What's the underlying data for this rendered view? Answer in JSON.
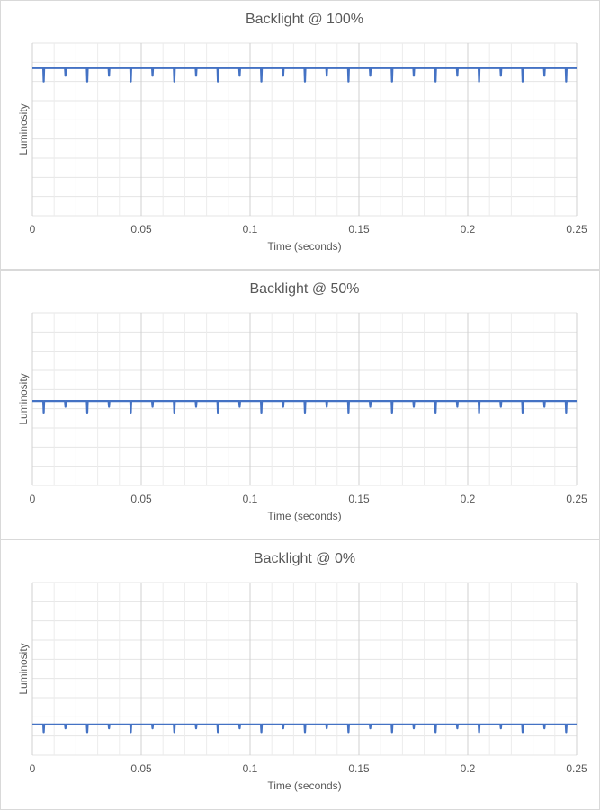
{
  "chart_data": [
    {
      "type": "line",
      "title": "Backlight @ 100%",
      "x_label": "Time (seconds)",
      "y_label": "Luminosity",
      "color": "#4472c4",
      "xlim": [
        0,
        0.25
      ],
      "xticks": [
        0,
        0.05,
        0.1,
        0.15,
        0.2,
        0.25
      ],
      "ylim": [
        0,
        9
      ],
      "ygrid": [
        0,
        1,
        2,
        3,
        4,
        5,
        6,
        7,
        8,
        9
      ],
      "grid": true,
      "x": [
        0,
        0.005,
        0.0052,
        0.0054,
        0.015,
        0.0152,
        0.0154,
        0.025,
        0.0252,
        0.0254,
        0.035,
        0.0352,
        0.0354,
        0.045,
        0.0452,
        0.0454,
        0.055,
        0.0552,
        0.0554,
        0.065,
        0.0652,
        0.0654,
        0.075,
        0.0752,
        0.0754,
        0.085,
        0.0852,
        0.0854,
        0.095,
        0.0952,
        0.0954,
        0.105,
        0.1052,
        0.1054,
        0.115,
        0.1152,
        0.1154,
        0.125,
        0.1252,
        0.1254,
        0.135,
        0.1352,
        0.1354,
        0.145,
        0.1452,
        0.1454,
        0.155,
        0.1552,
        0.1554,
        0.165,
        0.1652,
        0.1654,
        0.175,
        0.1752,
        0.1754,
        0.185,
        0.1852,
        0.1854,
        0.195,
        0.1952,
        0.1954,
        0.205,
        0.2052,
        0.2054,
        0.215,
        0.2152,
        0.2154,
        0.225,
        0.2252,
        0.2254,
        0.235,
        0.2352,
        0.2354,
        0.245,
        0.2452,
        0.2454,
        0.25
      ],
      "values": [
        7.7,
        7.7,
        7.0,
        7.7,
        7.7,
        7.3,
        7.7,
        7.7,
        7.0,
        7.7,
        7.7,
        7.3,
        7.7,
        7.7,
        7.0,
        7.7,
        7.7,
        7.3,
        7.7,
        7.7,
        7.0,
        7.7,
        7.7,
        7.3,
        7.7,
        7.7,
        7.0,
        7.7,
        7.7,
        7.3,
        7.7,
        7.7,
        7.0,
        7.7,
        7.7,
        7.3,
        7.7,
        7.7,
        7.0,
        7.7,
        7.7,
        7.3,
        7.7,
        7.7,
        7.0,
        7.7,
        7.7,
        7.3,
        7.7,
        7.7,
        7.0,
        7.7,
        7.7,
        7.3,
        7.7,
        7.7,
        7.0,
        7.7,
        7.7,
        7.3,
        7.7,
        7.7,
        7.0,
        7.7,
        7.7,
        7.3,
        7.7,
        7.7,
        7.0,
        7.7,
        7.7,
        7.3,
        7.7,
        7.7,
        7.0,
        7.7,
        7.7
      ]
    },
    {
      "type": "line",
      "title": "Backlight @ 50%",
      "x_label": "Time (seconds)",
      "y_label": "Luminosity",
      "color": "#4472c4",
      "xlim": [
        0,
        0.25
      ],
      "xticks": [
        0,
        0.05,
        0.1,
        0.15,
        0.2,
        0.25
      ],
      "ylim": [
        0,
        9
      ],
      "ygrid": [
        0,
        1,
        2,
        3,
        4,
        5,
        6,
        7,
        8,
        9
      ],
      "grid": true,
      "x": [
        0,
        0.005,
        0.0052,
        0.0054,
        0.015,
        0.0152,
        0.0154,
        0.025,
        0.0252,
        0.0254,
        0.035,
        0.0352,
        0.0354,
        0.045,
        0.0452,
        0.0454,
        0.055,
        0.0552,
        0.0554,
        0.065,
        0.0652,
        0.0654,
        0.075,
        0.0752,
        0.0754,
        0.085,
        0.0852,
        0.0854,
        0.095,
        0.0952,
        0.0954,
        0.105,
        0.1052,
        0.1054,
        0.115,
        0.1152,
        0.1154,
        0.125,
        0.1252,
        0.1254,
        0.135,
        0.1352,
        0.1354,
        0.145,
        0.1452,
        0.1454,
        0.155,
        0.1552,
        0.1554,
        0.165,
        0.1652,
        0.1654,
        0.175,
        0.1752,
        0.1754,
        0.185,
        0.1852,
        0.1854,
        0.195,
        0.1952,
        0.1954,
        0.205,
        0.2052,
        0.2054,
        0.215,
        0.2152,
        0.2154,
        0.225,
        0.2252,
        0.2254,
        0.235,
        0.2352,
        0.2354,
        0.245,
        0.2452,
        0.2454,
        0.25
      ],
      "values": [
        4.4,
        4.4,
        3.8,
        4.4,
        4.4,
        4.1,
        4.4,
        4.4,
        3.8,
        4.4,
        4.4,
        4.1,
        4.4,
        4.4,
        3.8,
        4.4,
        4.4,
        4.1,
        4.4,
        4.4,
        3.8,
        4.4,
        4.4,
        4.1,
        4.4,
        4.4,
        3.8,
        4.4,
        4.4,
        4.1,
        4.4,
        4.4,
        3.8,
        4.4,
        4.4,
        4.1,
        4.4,
        4.4,
        3.8,
        4.4,
        4.4,
        4.1,
        4.4,
        4.4,
        3.8,
        4.4,
        4.4,
        4.1,
        4.4,
        4.4,
        3.8,
        4.4,
        4.4,
        4.1,
        4.4,
        4.4,
        3.8,
        4.4,
        4.4,
        4.1,
        4.4,
        4.4,
        3.8,
        4.4,
        4.4,
        4.1,
        4.4,
        4.4,
        3.8,
        4.4,
        4.4,
        4.1,
        4.4,
        4.4,
        3.8,
        4.4,
        4.4
      ]
    },
    {
      "type": "line",
      "title": "Backlight @ 0%",
      "x_label": "Time (seconds)",
      "y_label": "Luminosity",
      "color": "#4472c4",
      "xlim": [
        0,
        0.25
      ],
      "xticks": [
        0,
        0.05,
        0.1,
        0.15,
        0.2,
        0.25
      ],
      "ylim": [
        0,
        9
      ],
      "ygrid": [
        0,
        1,
        2,
        3,
        4,
        5,
        6,
        7,
        8,
        9
      ],
      "grid": true,
      "x": [
        0,
        0.005,
        0.0052,
        0.0054,
        0.015,
        0.0152,
        0.0154,
        0.025,
        0.0252,
        0.0254,
        0.035,
        0.0352,
        0.0354,
        0.045,
        0.0452,
        0.0454,
        0.055,
        0.0552,
        0.0554,
        0.065,
        0.0652,
        0.0654,
        0.075,
        0.0752,
        0.0754,
        0.085,
        0.0852,
        0.0854,
        0.095,
        0.0952,
        0.0954,
        0.105,
        0.1052,
        0.1054,
        0.115,
        0.1152,
        0.1154,
        0.125,
        0.1252,
        0.1254,
        0.135,
        0.1352,
        0.1354,
        0.145,
        0.1452,
        0.1454,
        0.155,
        0.1552,
        0.1554,
        0.165,
        0.1652,
        0.1654,
        0.175,
        0.1752,
        0.1754,
        0.185,
        0.1852,
        0.1854,
        0.195,
        0.1952,
        0.1954,
        0.205,
        0.2052,
        0.2054,
        0.215,
        0.2152,
        0.2154,
        0.225,
        0.2252,
        0.2254,
        0.235,
        0.2352,
        0.2354,
        0.245,
        0.2452,
        0.2454,
        0.25
      ],
      "values": [
        1.6,
        1.6,
        1.2,
        1.6,
        1.6,
        1.4,
        1.6,
        1.6,
        1.2,
        1.6,
        1.6,
        1.4,
        1.6,
        1.6,
        1.2,
        1.6,
        1.6,
        1.4,
        1.6,
        1.6,
        1.2,
        1.6,
        1.6,
        1.4,
        1.6,
        1.6,
        1.2,
        1.6,
        1.6,
        1.4,
        1.6,
        1.6,
        1.2,
        1.6,
        1.6,
        1.4,
        1.6,
        1.6,
        1.2,
        1.6,
        1.6,
        1.4,
        1.6,
        1.6,
        1.2,
        1.6,
        1.6,
        1.4,
        1.6,
        1.6,
        1.2,
        1.6,
        1.6,
        1.4,
        1.6,
        1.6,
        1.2,
        1.6,
        1.6,
        1.4,
        1.6,
        1.6,
        1.2,
        1.6,
        1.6,
        1.4,
        1.6,
        1.6,
        1.2,
        1.6,
        1.6,
        1.4,
        1.6,
        1.6,
        1.2,
        1.6,
        1.6
      ]
    }
  ]
}
